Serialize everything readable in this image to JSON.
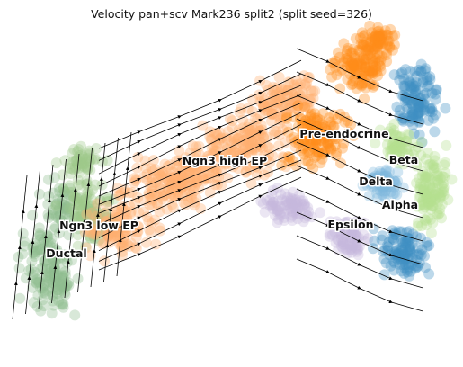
{
  "chart_data": {
    "type": "scatter",
    "title": "Velocity pan+scv Mark236 split2 (split seed=326)",
    "xlabel": "",
    "ylabel": "",
    "grid": false,
    "legend": "on data",
    "clusters": [
      {
        "name": "Ductal",
        "color": "#8fbc8f"
      },
      {
        "name": "Ngn3 low EP",
        "color": "#9dc98a"
      },
      {
        "name": "Ngn3 high EP",
        "color": "#ffb070"
      },
      {
        "name": "Pre-endocrine",
        "color": "#ff8c1a"
      },
      {
        "name": "Beta",
        "color": "#3f8fc4"
      },
      {
        "name": "Alpha",
        "color": "#b5e08f"
      },
      {
        "name": "Delta",
        "color": "#7fb8de"
      },
      {
        "name": "Epsilon",
        "color": "#c6b6dc"
      }
    ]
  }
}
